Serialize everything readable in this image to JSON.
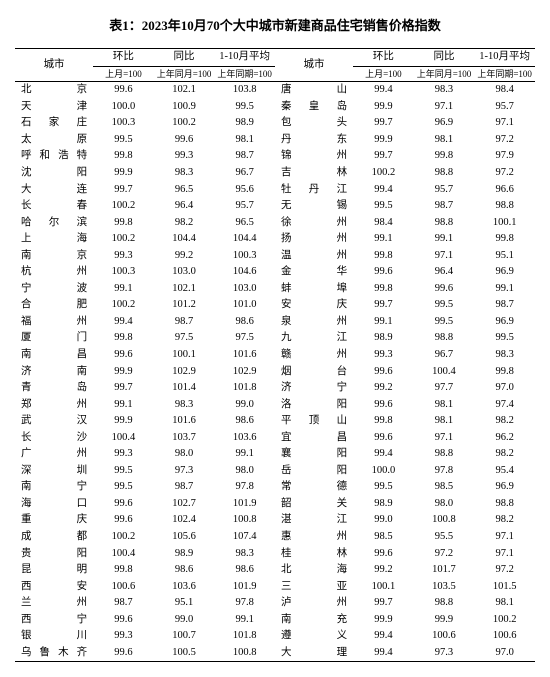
{
  "title": "表1：2023年10月70个大中城市新建商品住宅销售价格指数",
  "headers": {
    "city": "城市",
    "mom": "环比",
    "yoy": "同比",
    "ytd": "1-10月平均",
    "mom_sub": "上月=100",
    "yoy_sub": "上年同月=100",
    "ytd_sub": "上年同期=100"
  },
  "left": [
    {
      "city": "北京",
      "mom": "99.6",
      "yoy": "102.1",
      "ytd": "103.8"
    },
    {
      "city": "天津",
      "mom": "100.0",
      "yoy": "100.9",
      "ytd": "99.5"
    },
    {
      "city": "石家庄",
      "mom": "100.3",
      "yoy": "100.2",
      "ytd": "98.9"
    },
    {
      "city": "太原",
      "mom": "99.5",
      "yoy": "99.6",
      "ytd": "98.1"
    },
    {
      "city": "呼和浩特",
      "mom": "99.8",
      "yoy": "99.3",
      "ytd": "98.7"
    },
    {
      "city": "沈阳",
      "mom": "99.9",
      "yoy": "98.3",
      "ytd": "96.7"
    },
    {
      "city": "大连",
      "mom": "99.7",
      "yoy": "96.5",
      "ytd": "95.6"
    },
    {
      "city": "长春",
      "mom": "100.2",
      "yoy": "96.4",
      "ytd": "95.7"
    },
    {
      "city": "哈尔滨",
      "mom": "99.8",
      "yoy": "98.2",
      "ytd": "96.5"
    },
    {
      "city": "上海",
      "mom": "100.2",
      "yoy": "104.4",
      "ytd": "104.4"
    },
    {
      "city": "南京",
      "mom": "99.3",
      "yoy": "99.2",
      "ytd": "100.3"
    },
    {
      "city": "杭州",
      "mom": "100.3",
      "yoy": "103.0",
      "ytd": "104.6"
    },
    {
      "city": "宁波",
      "mom": "99.1",
      "yoy": "102.1",
      "ytd": "103.0"
    },
    {
      "city": "合肥",
      "mom": "100.2",
      "yoy": "101.2",
      "ytd": "101.0"
    },
    {
      "city": "福州",
      "mom": "99.4",
      "yoy": "98.7",
      "ytd": "98.6"
    },
    {
      "city": "厦门",
      "mom": "99.8",
      "yoy": "97.5",
      "ytd": "97.5"
    },
    {
      "city": "南昌",
      "mom": "99.6",
      "yoy": "100.1",
      "ytd": "101.6"
    },
    {
      "city": "济南",
      "mom": "99.9",
      "yoy": "102.9",
      "ytd": "102.9"
    },
    {
      "city": "青岛",
      "mom": "99.7",
      "yoy": "101.4",
      "ytd": "101.8"
    },
    {
      "city": "郑州",
      "mom": "99.1",
      "yoy": "98.3",
      "ytd": "99.0"
    },
    {
      "city": "武汉",
      "mom": "99.9",
      "yoy": "101.6",
      "ytd": "98.6"
    },
    {
      "city": "长沙",
      "mom": "100.4",
      "yoy": "103.7",
      "ytd": "103.6"
    },
    {
      "city": "广州",
      "mom": "99.3",
      "yoy": "98.0",
      "ytd": "99.1"
    },
    {
      "city": "深圳",
      "mom": "99.5",
      "yoy": "97.3",
      "ytd": "98.0"
    },
    {
      "city": "南宁",
      "mom": "99.5",
      "yoy": "98.7",
      "ytd": "97.8"
    },
    {
      "city": "海口",
      "mom": "99.6",
      "yoy": "102.7",
      "ytd": "101.9"
    },
    {
      "city": "重庆",
      "mom": "99.6",
      "yoy": "102.4",
      "ytd": "100.8"
    },
    {
      "city": "成都",
      "mom": "100.2",
      "yoy": "105.6",
      "ytd": "107.4"
    },
    {
      "city": "贵阳",
      "mom": "100.4",
      "yoy": "98.9",
      "ytd": "98.3"
    },
    {
      "city": "昆明",
      "mom": "99.8",
      "yoy": "98.6",
      "ytd": "98.6"
    },
    {
      "city": "西安",
      "mom": "100.6",
      "yoy": "103.6",
      "ytd": "101.9"
    },
    {
      "city": "兰州",
      "mom": "98.7",
      "yoy": "95.1",
      "ytd": "97.8"
    },
    {
      "city": "西宁",
      "mom": "99.6",
      "yoy": "99.0",
      "ytd": "99.1"
    },
    {
      "city": "银川",
      "mom": "99.3",
      "yoy": "100.7",
      "ytd": "101.8"
    },
    {
      "city": "乌鲁木齐",
      "mom": "99.6",
      "yoy": "100.5",
      "ytd": "100.8"
    }
  ],
  "right": [
    {
      "city": "唐山",
      "mom": "99.4",
      "yoy": "98.3",
      "ytd": "98.4"
    },
    {
      "city": "秦皇岛",
      "mom": "99.9",
      "yoy": "97.1",
      "ytd": "95.7"
    },
    {
      "city": "包头",
      "mom": "99.7",
      "yoy": "96.9",
      "ytd": "97.1"
    },
    {
      "city": "丹东",
      "mom": "99.9",
      "yoy": "98.1",
      "ytd": "97.2"
    },
    {
      "city": "锦州",
      "mom": "99.7",
      "yoy": "99.8",
      "ytd": "97.9"
    },
    {
      "city": "吉林",
      "mom": "100.2",
      "yoy": "98.8",
      "ytd": "97.2"
    },
    {
      "city": "牡丹江",
      "mom": "99.4",
      "yoy": "95.7",
      "ytd": "96.6"
    },
    {
      "city": "无锡",
      "mom": "99.5",
      "yoy": "98.7",
      "ytd": "98.8"
    },
    {
      "city": "徐州",
      "mom": "98.4",
      "yoy": "98.8",
      "ytd": "100.1"
    },
    {
      "city": "扬州",
      "mom": "99.1",
      "yoy": "99.1",
      "ytd": "99.8"
    },
    {
      "city": "温州",
      "mom": "99.8",
      "yoy": "97.1",
      "ytd": "95.1"
    },
    {
      "city": "金华",
      "mom": "99.6",
      "yoy": "96.4",
      "ytd": "96.9"
    },
    {
      "city": "蚌埠",
      "mom": "99.8",
      "yoy": "99.6",
      "ytd": "99.1"
    },
    {
      "city": "安庆",
      "mom": "99.7",
      "yoy": "99.5",
      "ytd": "98.7"
    },
    {
      "city": "泉州",
      "mom": "99.1",
      "yoy": "99.5",
      "ytd": "96.9"
    },
    {
      "city": "九江",
      "mom": "98.9",
      "yoy": "98.8",
      "ytd": "99.5"
    },
    {
      "city": "赣州",
      "mom": "99.3",
      "yoy": "96.7",
      "ytd": "98.3"
    },
    {
      "city": "烟台",
      "mom": "99.6",
      "yoy": "100.4",
      "ytd": "99.8"
    },
    {
      "city": "济宁",
      "mom": "99.2",
      "yoy": "97.7",
      "ytd": "97.0"
    },
    {
      "city": "洛阳",
      "mom": "99.6",
      "yoy": "98.1",
      "ytd": "97.4"
    },
    {
      "city": "平顶山",
      "mom": "99.8",
      "yoy": "98.1",
      "ytd": "98.2"
    },
    {
      "city": "宜昌",
      "mom": "99.6",
      "yoy": "97.1",
      "ytd": "96.2"
    },
    {
      "city": "襄阳",
      "mom": "99.4",
      "yoy": "98.8",
      "ytd": "98.2"
    },
    {
      "city": "岳阳",
      "mom": "100.0",
      "yoy": "97.8",
      "ytd": "95.4"
    },
    {
      "city": "常德",
      "mom": "99.5",
      "yoy": "98.5",
      "ytd": "96.9"
    },
    {
      "city": "韶关",
      "mom": "98.9",
      "yoy": "98.0",
      "ytd": "98.8"
    },
    {
      "city": "湛江",
      "mom": "99.0",
      "yoy": "100.8",
      "ytd": "98.2"
    },
    {
      "city": "惠州",
      "mom": "98.5",
      "yoy": "95.5",
      "ytd": "97.1"
    },
    {
      "city": "桂林",
      "mom": "99.6",
      "yoy": "97.2",
      "ytd": "97.1"
    },
    {
      "city": "北海",
      "mom": "99.2",
      "yoy": "101.7",
      "ytd": "97.2"
    },
    {
      "city": "三亚",
      "mom": "100.1",
      "yoy": "103.5",
      "ytd": "101.5"
    },
    {
      "city": "泸州",
      "mom": "99.7",
      "yoy": "98.8",
      "ytd": "98.1"
    },
    {
      "city": "南充",
      "mom": "99.9",
      "yoy": "99.9",
      "ytd": "100.2"
    },
    {
      "city": "遵义",
      "mom": "99.4",
      "yoy": "100.6",
      "ytd": "100.6"
    },
    {
      "city": "大理",
      "mom": "99.4",
      "yoy": "97.3",
      "ytd": "97.0"
    }
  ],
  "style": {
    "background_color": "#ffffff",
    "text_color": "#000000",
    "title_fontsize": 13,
    "body_fontsize": 10.5,
    "sub_fontsize": 9,
    "border_color": "#000000"
  }
}
